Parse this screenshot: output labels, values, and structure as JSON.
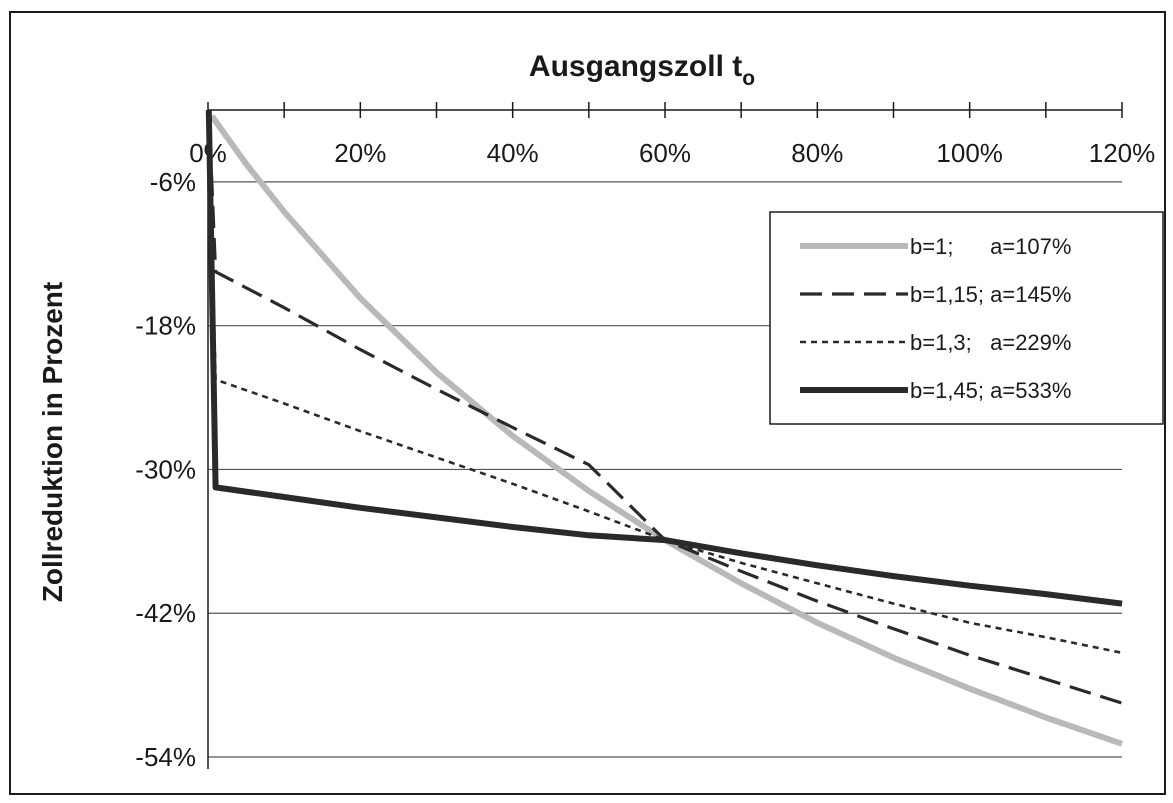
{
  "chart_data": {
    "type": "line",
    "title": "Ausgangszoll t",
    "title_subscript": "o",
    "xlabel": "",
    "ylabel": "Zollreduktion in Prozent",
    "xlim": [
      0,
      120
    ],
    "ylim": [
      -54,
      0
    ],
    "x_ticks": [
      "0%",
      "20%",
      "40%",
      "60%",
      "80%",
      "100%",
      "120%"
    ],
    "y_ticks": [
      "-6%",
      "-18%",
      "-30%",
      "-42%",
      "-54%"
    ],
    "x_axis_position": "top",
    "grid": "horizontal",
    "legend_position": "top-right",
    "series": [
      {
        "name": "b=1;      a=107%",
        "style": "light-grey",
        "x": [
          0.5,
          5,
          10,
          20,
          30,
          40,
          50,
          60,
          70,
          80,
          90,
          100,
          110,
          120
        ],
        "y": [
          -0.5,
          -4.5,
          -8.5,
          -15.7,
          -21.9,
          -27.2,
          -31.8,
          -35.9,
          -39.5,
          -42.8,
          -45.7,
          -48.3,
          -50.7,
          -52.9
        ]
      },
      {
        "name": "b=1,15; a=145%",
        "style": "dashed",
        "x": [
          0.1,
          1,
          10,
          20,
          30,
          40,
          50,
          60,
          70,
          80,
          90,
          100,
          110,
          120
        ],
        "y": [
          0,
          -13.5,
          -16.5,
          -20,
          -23.3,
          -26.5,
          -29.6,
          -35.9,
          -38.5,
          -41,
          -43.3,
          -45.5,
          -47.5,
          -49.5
        ]
      },
      {
        "name": "b=1,3;   a=229%",
        "style": "dotted",
        "x": [
          0.1,
          1,
          10,
          20,
          30,
          40,
          50,
          60,
          70,
          80,
          90,
          100,
          110,
          120
        ],
        "y": [
          0,
          -22.5,
          -24.5,
          -26.8,
          -29,
          -31.2,
          -33.5,
          -35.9,
          -37.8,
          -39.5,
          -41.2,
          -42.8,
          -44,
          -45.3
        ]
      },
      {
        "name": "b=1,45; a=533%",
        "style": "thick",
        "x": [
          0.1,
          1,
          10,
          20,
          30,
          40,
          50,
          60,
          70,
          80,
          90,
          100,
          110,
          120
        ],
        "y": [
          0,
          -31.5,
          -32.3,
          -33.2,
          -34,
          -34.8,
          -35.5,
          -35.9,
          -37,
          -38,
          -38.9,
          -39.7,
          -40.4,
          -41.2
        ]
      }
    ]
  }
}
